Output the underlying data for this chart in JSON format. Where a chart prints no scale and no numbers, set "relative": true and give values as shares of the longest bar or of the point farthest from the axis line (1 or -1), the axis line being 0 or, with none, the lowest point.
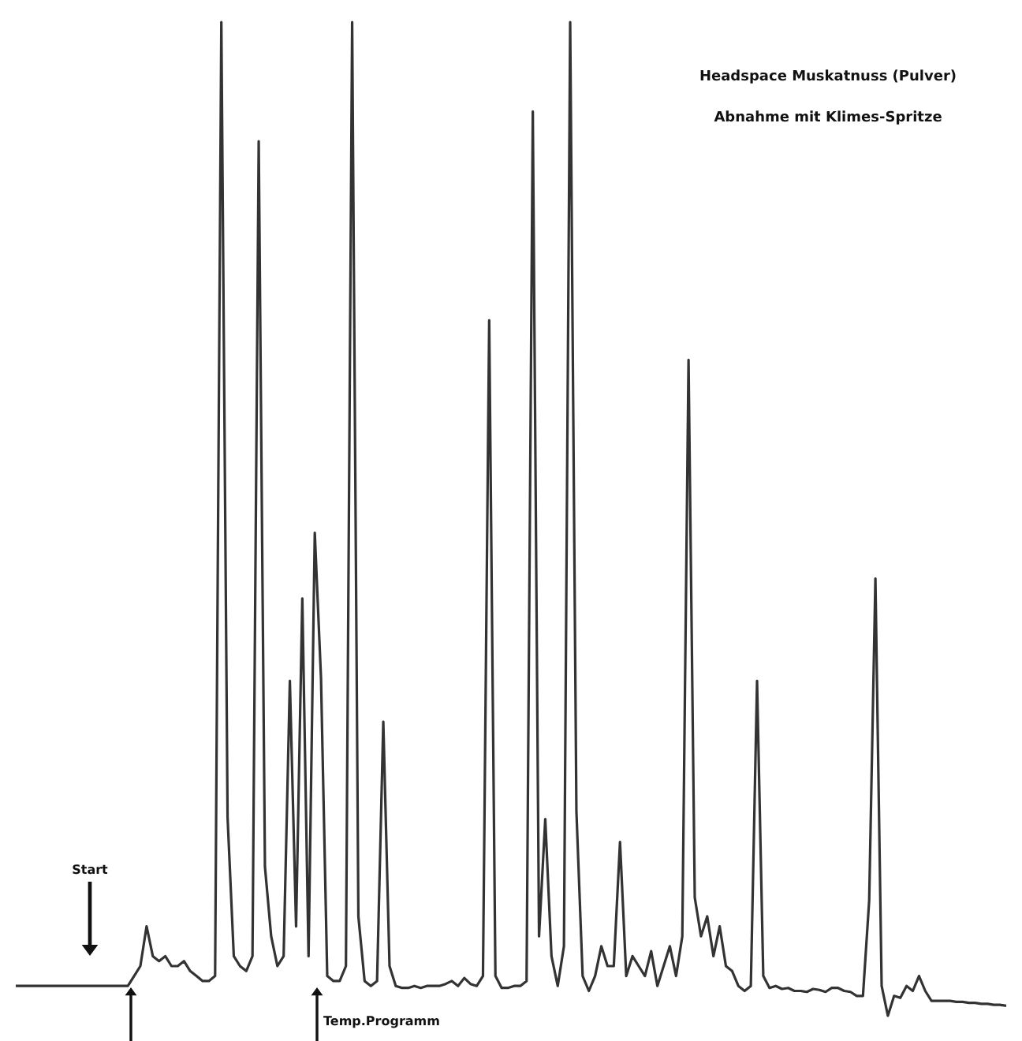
{
  "chart_data": {
    "type": "line",
    "relative": true,
    "title": "Headspace Muskatnuss (Pulver)",
    "subtitle": "Abnahme mit Klimes-Spritze",
    "annotations": [
      "Start",
      "Temp.Programm"
    ],
    "categories": [
      null,
      null,
      null,
      null,
      null,
      null,
      null,
      null,
      null,
      null,
      null,
      null,
      null,
      null,
      null,
      null,
      null,
      null,
      null,
      null,
      null,
      null,
      null,
      null,
      null,
      null,
      null,
      null,
      null,
      null,
      null,
      null,
      null,
      null,
      null,
      null,
      null,
      null,
      null,
      null,
      null,
      null,
      null,
      null,
      null,
      null,
      null,
      null,
      null,
      null,
      null,
      null,
      null,
      null,
      null,
      null,
      null,
      null,
      null,
      null,
      null,
      null,
      null,
      null,
      null,
      null,
      null,
      null,
      null,
      null,
      null,
      null,
      null,
      null,
      null,
      null,
      null,
      null,
      null,
      null,
      null,
      null,
      null,
      null,
      null,
      null,
      null,
      null,
      null,
      null,
      null,
      null,
      null,
      null,
      null,
      null,
      null,
      null,
      null,
      null,
      null,
      null,
      null,
      null,
      null,
      null,
      null,
      null,
      null,
      null,
      null,
      null,
      null,
      null,
      null,
      null,
      null,
      null,
      null,
      null,
      null,
      null,
      null,
      null,
      null,
      null,
      null,
      null,
      null,
      null,
      null,
      null,
      null,
      null,
      null,
      null,
      null,
      null,
      null,
      null,
      null,
      null,
      null,
      null,
      null,
      null,
      null,
      null,
      null,
      null,
      null,
      null,
      null,
      null,
      null,
      null,
      null,
      null,
      null,
      null
    ],
    "series": [
      {
        "color": "#333333",
        "values": [
          0.03,
          0.03,
          0.03,
          0.03,
          0.03,
          0.03,
          0.03,
          0.03,
          0.03,
          0.03,
          0.03,
          0.03,
          0.03,
          0.03,
          0.03,
          0.03,
          0.03,
          0.03,
          0.03,
          0.04,
          0.05,
          0.09,
          0.06,
          0.055,
          0.06,
          0.05,
          0.05,
          0.055,
          0.045,
          0.04,
          0.035,
          0.035,
          0.04,
          1.0,
          0.2,
          0.06,
          0.05,
          0.045,
          0.06,
          0.88,
          0.15,
          0.08,
          0.05,
          0.06,
          0.337,
          0.09,
          0.42,
          0.06,
          0.486,
          0.34,
          0.04,
          0.035,
          0.035,
          0.05,
          1.0,
          0.1,
          0.035,
          0.03,
          0.035,
          0.296,
          0.05,
          0.03,
          0.028,
          0.028,
          0.03,
          0.028,
          0.03,
          0.03,
          0.03,
          0.032,
          0.035,
          0.03,
          0.038,
          0.032,
          0.03,
          0.04,
          0.7,
          0.04,
          0.028,
          0.028,
          0.03,
          0.03,
          0.035,
          0.91,
          0.08,
          0.198,
          0.06,
          0.03,
          0.07,
          1.0,
          0.206,
          0.04,
          0.025,
          0.04,
          0.07,
          0.05,
          0.05,
          0.175,
          0.04,
          0.06,
          0.05,
          0.04,
          0.065,
          0.03,
          0.05,
          0.07,
          0.04,
          0.08,
          0.66,
          0.119,
          0.08,
          0.1,
          0.06,
          0.09,
          0.05,
          0.045,
          0.03,
          0.025,
          0.03,
          0.337,
          0.04,
          0.028,
          0.03,
          0.027,
          0.028,
          0.025,
          0.025,
          0.024,
          0.027,
          0.026,
          0.024,
          0.028,
          0.028,
          0.025,
          0.024,
          0.02,
          0.02,
          0.116,
          0.44,
          0.03,
          0,
          0.02,
          0.018,
          0.03,
          0.025,
          0.04,
          0.025,
          0.015,
          0.015,
          0.015,
          0.015,
          0.014,
          0.014,
          0.013,
          0.013,
          0.012,
          0.012,
          0.011,
          0.011,
          0.01
        ]
      }
    ]
  }
}
